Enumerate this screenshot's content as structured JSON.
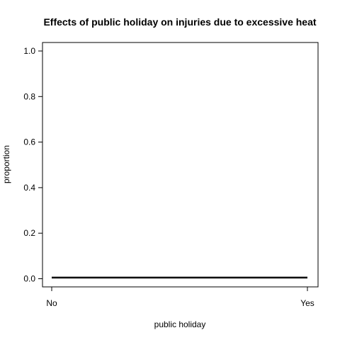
{
  "chart_data": {
    "type": "line",
    "title": "Effects of public holiday on injuries due to excessive heat",
    "xlabel": "public holiday",
    "ylabel": "proportion",
    "categories": [
      "No",
      "Yes"
    ],
    "ylim": [
      0,
      1
    ],
    "yticks": [
      0.0,
      0.2,
      0.4,
      0.6,
      0.8,
      1.0
    ],
    "ytick_labels": [
      "0.0",
      "0.2",
      "0.4",
      "0.6",
      "0.8",
      "1.0"
    ],
    "series": [
      {
        "values": [
          0.007,
          0.007
        ]
      },
      {
        "values": [
          0.003,
          0.003
        ]
      }
    ],
    "grid": false,
    "line_color": "#000000"
  }
}
